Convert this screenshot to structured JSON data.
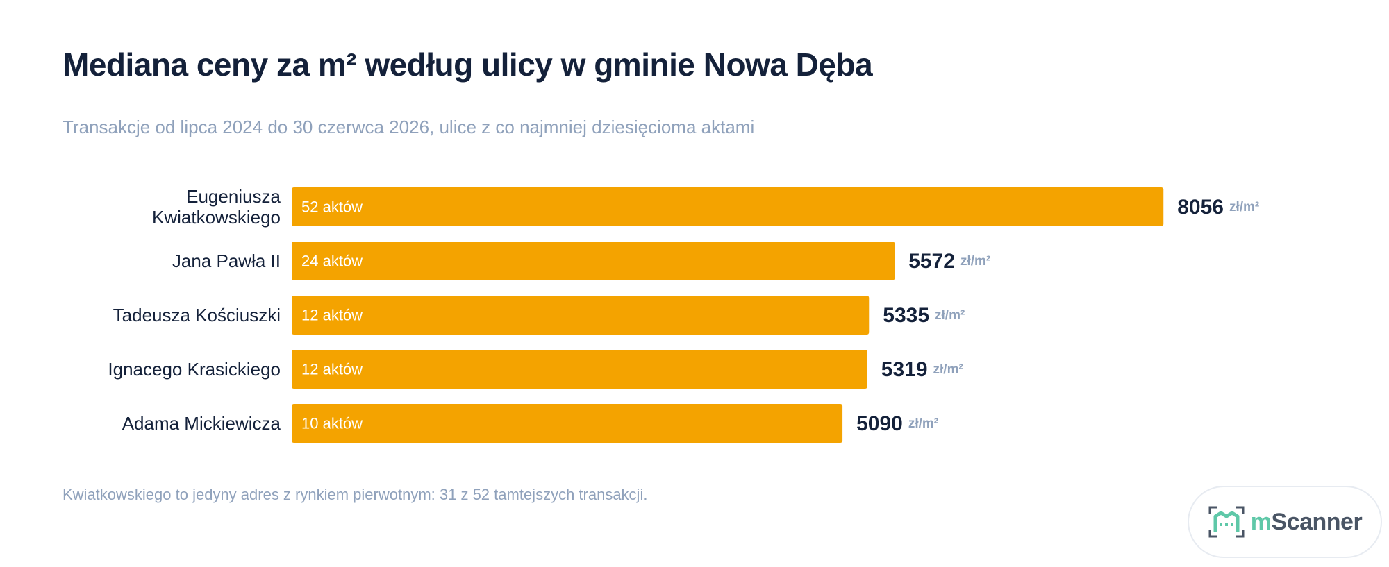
{
  "title": "Mediana ceny za m² według ulicy w gminie Nowa Dęba",
  "subtitle": "Transakcje od lipca 2024 do 30 czerwca 2026, ulice z co najmniej dziesięcioma aktami",
  "footnote": "Kwiatkowskiego to jedyny adres z rynkiem pierwotnym: 31 z 52 tamtejszych transakcji.",
  "logo": {
    "m": "m",
    "rest": "Scanner"
  },
  "colors": {
    "bar": "#f4a300",
    "title": "#14213a",
    "muted": "#8fa1bb",
    "bar_text": "#ffffff",
    "logo_mark": "#5fc8a8"
  },
  "chart_data": {
    "type": "bar",
    "orientation": "horizontal",
    "unit": "zł/m²",
    "xlim": [
      0,
      8600
    ],
    "grid": false,
    "legend": "none",
    "categories": [
      [
        "Eugeniusza",
        "Kwiatkowskiego"
      ],
      [
        "Jana Pawła II"
      ],
      [
        "Tadeusza Kościuszki"
      ],
      [
        "Ignacego Krasickiego"
      ],
      [
        "Adama Mickiewicza"
      ]
    ],
    "values": [
      8056,
      5572,
      5335,
      5319,
      5090
    ],
    "bar_labels": [
      "52 aktów",
      "24 aktów",
      "12 aktów",
      "12 aktów",
      "10 aktów"
    ]
  }
}
